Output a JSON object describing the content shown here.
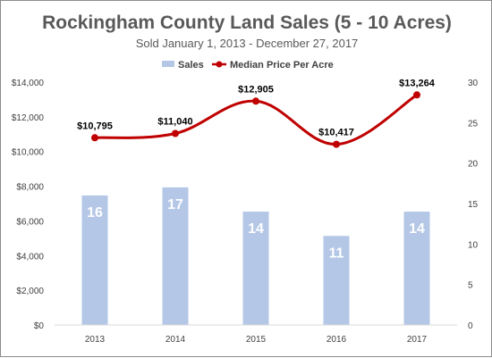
{
  "chart_data": {
    "type": "bar+line",
    "title": "Rockingham County Land Sales (5 - 10 Acres)",
    "subtitle": "Sold January 1, 2013 - December 27, 2017",
    "categories": [
      "2013",
      "2014",
      "2015",
      "2016",
      "2017"
    ],
    "series": [
      {
        "name": "Sales",
        "type": "bar",
        "axis": "right",
        "color": "#b4c7e7",
        "values": [
          16,
          17,
          14,
          11,
          14
        ],
        "labels": [
          "16",
          "17",
          "14",
          "11",
          "14"
        ]
      },
      {
        "name": "Median Price Per Acre",
        "type": "line",
        "axis": "left",
        "color": "#c00000",
        "values": [
          10795,
          11040,
          12905,
          10417,
          13264
        ],
        "labels": [
          "$10,795",
          "$11,040",
          "$12,905",
          "$10,417",
          "$13,264"
        ]
      }
    ],
    "y_left": {
      "range": [
        0,
        14000
      ],
      "ticks": [
        0,
        2000,
        4000,
        6000,
        8000,
        10000,
        12000,
        14000
      ],
      "tick_labels": [
        "$0",
        "$2,000",
        "$4,000",
        "$6,000",
        "$8,000",
        "$10,000",
        "$12,000",
        "$14,000"
      ]
    },
    "y_right": {
      "range": [
        0,
        30
      ],
      "ticks": [
        0,
        5,
        10,
        15,
        20,
        25,
        30
      ],
      "tick_labels": [
        "0",
        "5",
        "10",
        "15",
        "20",
        "25",
        "30"
      ]
    },
    "legend_position": "top",
    "grid": false
  }
}
